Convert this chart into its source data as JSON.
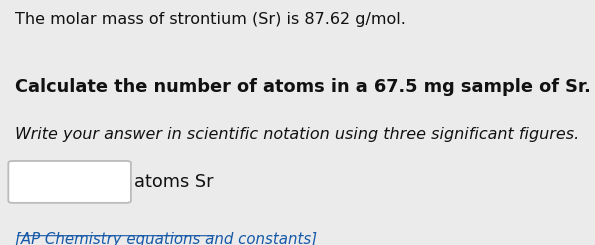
{
  "bg_color": "#ebebeb",
  "line1": "The molar mass of strontium (Sr) is 87.62 g/mol.",
  "line2_full": "Calculate the number of atoms in a 67.5 mg sample of Sr.",
  "line3": "Write your answer in scientific notation using three significant figures.",
  "line4_label": "atoms Sr",
  "line5_link": "[AP Chemistry equations and constants]",
  "text_color": "#111111",
  "link_color": "#1558a8",
  "box_edge_color": "#bbbbbb",
  "line1_fontsize": 11.5,
  "line2_fontsize": 12.8,
  "line3_fontsize": 11.5,
  "line4_fontsize": 12.8,
  "line5_fontsize": 10.8
}
